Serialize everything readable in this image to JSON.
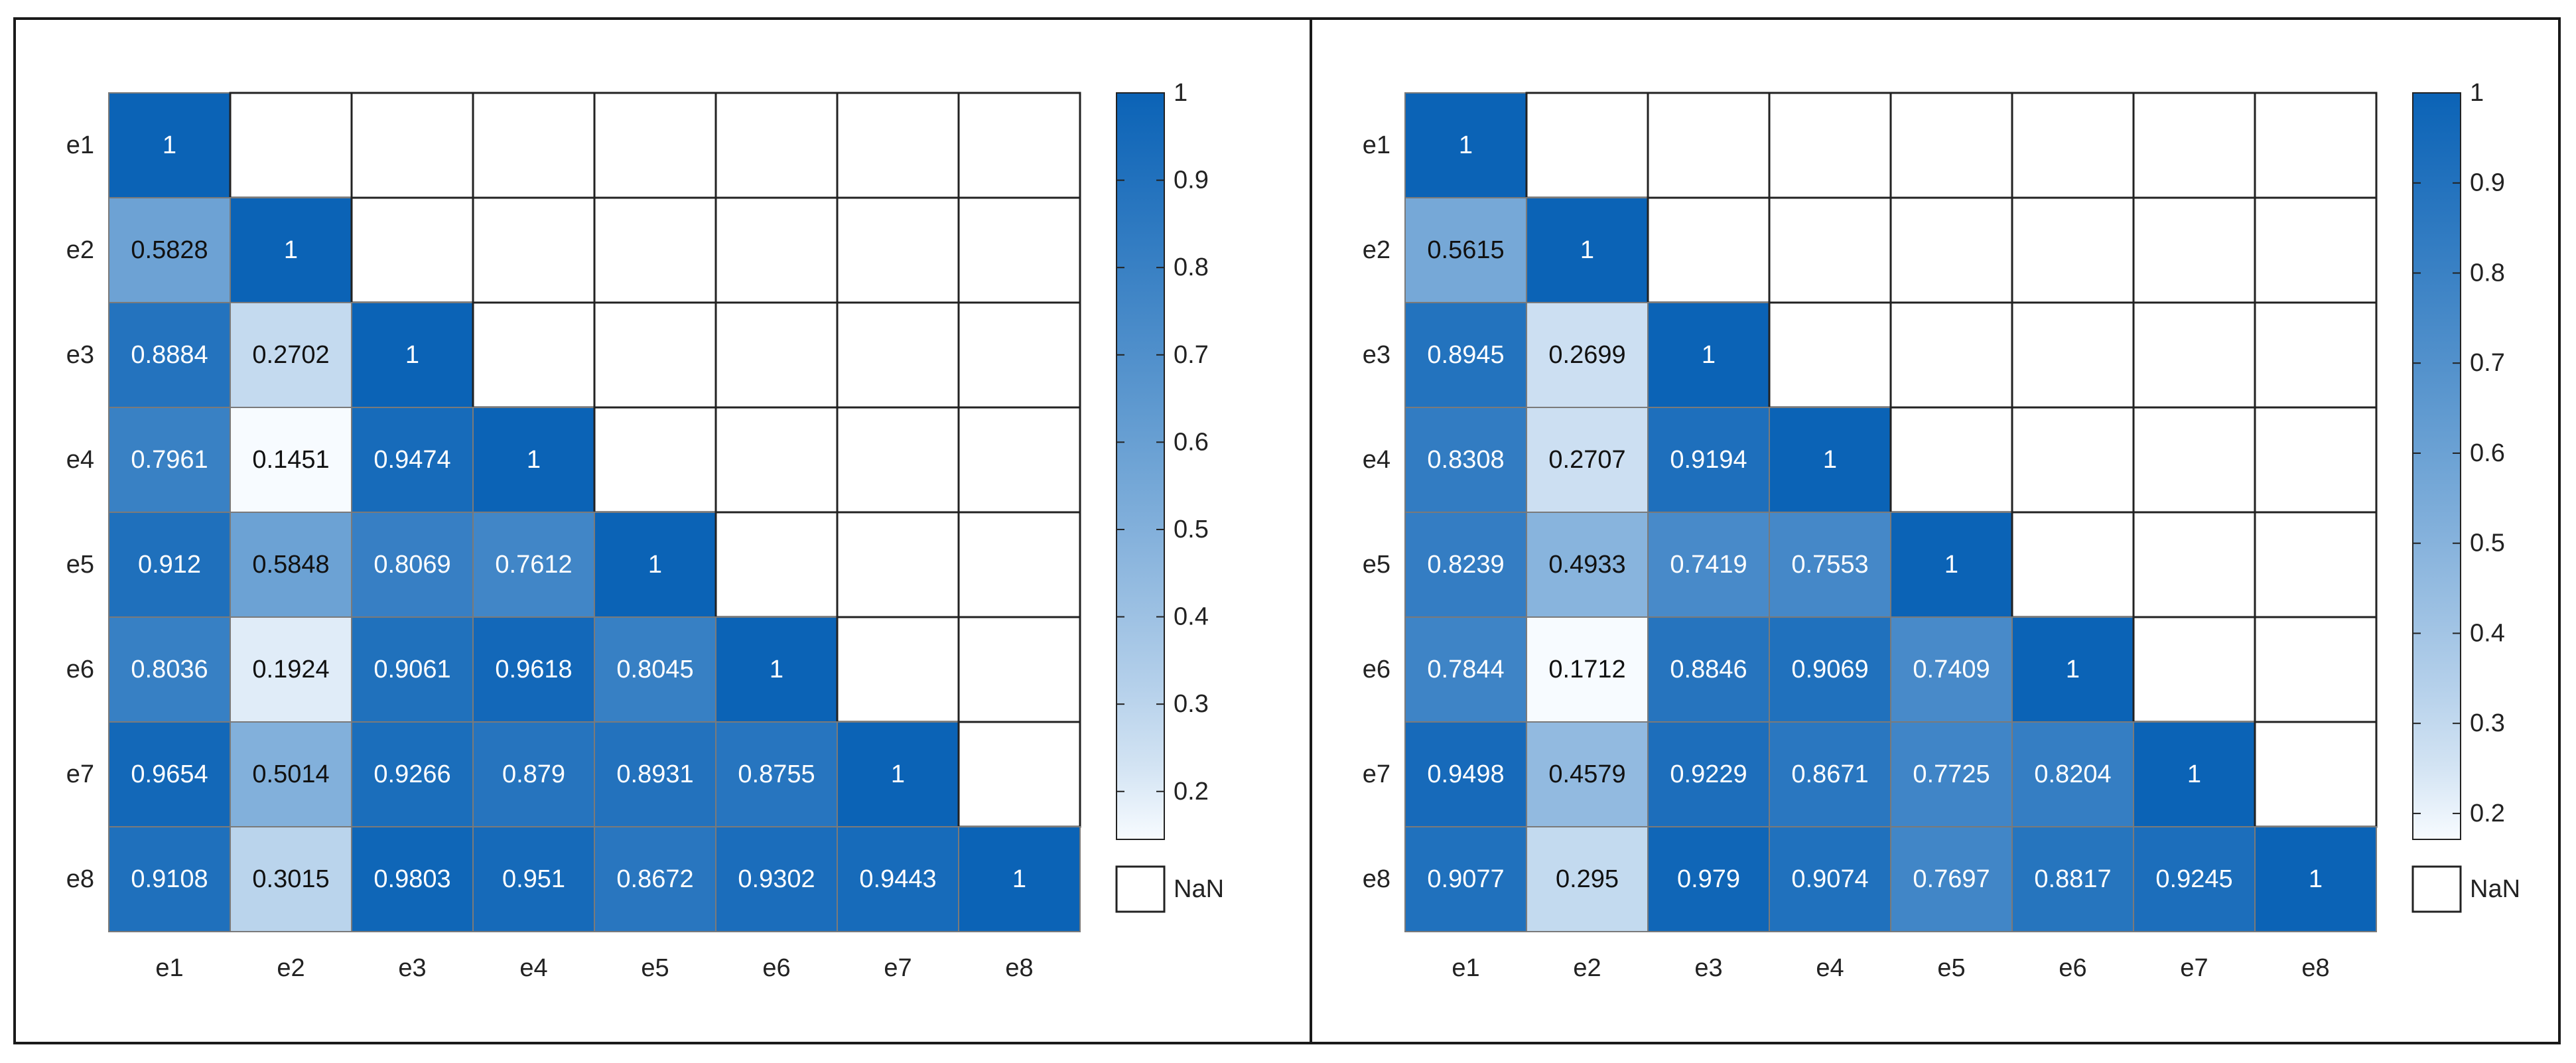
{
  "chart_data": [
    {
      "type": "heatmap",
      "title": "",
      "xlabel": "",
      "ylabel": "",
      "x_labels": [
        "e1",
        "e2",
        "e3",
        "e4",
        "e5",
        "e6",
        "e7",
        "e8"
      ],
      "y_labels": [
        "e1",
        "e2",
        "e3",
        "e4",
        "e5",
        "e6",
        "e7",
        "e8"
      ],
      "values": [
        [
          "1",
          null,
          null,
          null,
          null,
          null,
          null,
          null
        ],
        [
          "0.5828",
          "1",
          null,
          null,
          null,
          null,
          null,
          null
        ],
        [
          "0.8884",
          "0.2702",
          "1",
          null,
          null,
          null,
          null,
          null
        ],
        [
          "0.7961",
          "0.1451",
          "0.9474",
          "1",
          null,
          null,
          null,
          null
        ],
        [
          "0.912",
          "0.5848",
          "0.8069",
          "0.7612",
          "1",
          null,
          null,
          null
        ],
        [
          "0.8036",
          "0.1924",
          "0.9061",
          "0.9618",
          "0.8045",
          "1",
          null,
          null
        ],
        [
          "0.9654",
          "0.5014",
          "0.9266",
          "0.879",
          "0.8931",
          "0.8755",
          "1",
          null
        ],
        [
          "0.9108",
          "0.3015",
          "0.9803",
          "0.951",
          "0.8672",
          "0.9302",
          "0.9443",
          "1"
        ]
      ],
      "colorbar": {
        "range": [
          0.1451,
          1
        ],
        "ticks": [
          "0.2",
          "0.3",
          "0.4",
          "0.5",
          "0.6",
          "0.7",
          "0.8",
          "0.9",
          "1"
        ],
        "nan_label": "NaN",
        "color_low": "#f7fbff",
        "color_high": "#0b63b6"
      },
      "grid": true,
      "legend": "right"
    },
    {
      "type": "heatmap",
      "title": "",
      "xlabel": "",
      "ylabel": "",
      "x_labels": [
        "e1",
        "e2",
        "e3",
        "e4",
        "e5",
        "e6",
        "e7",
        "e8"
      ],
      "y_labels": [
        "e1",
        "e2",
        "e3",
        "e4",
        "e5",
        "e6",
        "e7",
        "e8"
      ],
      "values": [
        [
          "1",
          null,
          null,
          null,
          null,
          null,
          null,
          null
        ],
        [
          "0.5615",
          "1",
          null,
          null,
          null,
          null,
          null,
          null
        ],
        [
          "0.8945",
          "0.2699",
          "1",
          null,
          null,
          null,
          null,
          null
        ],
        [
          "0.8308",
          "0.2707",
          "0.9194",
          "1",
          null,
          null,
          null,
          null
        ],
        [
          "0.8239",
          "0.4933",
          "0.7419",
          "0.7553",
          "1",
          null,
          null,
          null
        ],
        [
          "0.7844",
          "0.1712",
          "0.8846",
          "0.9069",
          "0.7409",
          "1",
          null,
          null
        ],
        [
          "0.9498",
          "0.4579",
          "0.9229",
          "0.8671",
          "0.7725",
          "0.8204",
          "1",
          null
        ],
        [
          "0.9077",
          "0.295",
          "0.979",
          "0.9074",
          "0.7697",
          "0.8817",
          "0.9245",
          "1"
        ]
      ],
      "colorbar": {
        "range": [
          0.1712,
          1
        ],
        "ticks": [
          "0.2",
          "0.3",
          "0.4",
          "0.5",
          "0.6",
          "0.7",
          "0.8",
          "0.9",
          "1"
        ],
        "nan_label": "NaN",
        "color_low": "#f7fbff",
        "color_high": "#0b63b6"
      },
      "grid": true,
      "legend": "right"
    }
  ]
}
